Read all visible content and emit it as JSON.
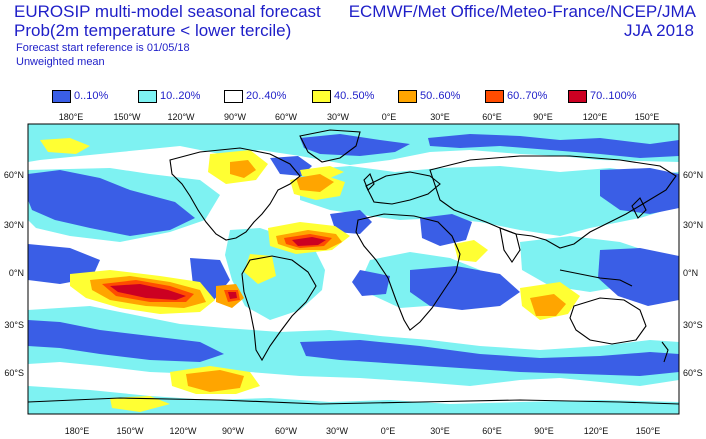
{
  "header": {
    "title_left": "EUROSIP multi-model seasonal forecast",
    "subtitle_left": "Prob(2m temperature < lower tercile)",
    "start_ref": "Forecast start reference is 01/05/18",
    "weighting": "Unweighted mean",
    "title_right": "ECMWF/Met Office/Meteo-France/NCEP/JMA",
    "season": "JJA 2018"
  },
  "legend": [
    {
      "label": "0..10%",
      "color": "#3a5ee6"
    },
    {
      "label": "10..20%",
      "color": "#7ef2f2"
    },
    {
      "label": "20..40%",
      "color": "#ffffff"
    },
    {
      "label": "40..50%",
      "color": "#ffff33"
    },
    {
      "label": "50..60%",
      "color": "#ffa500"
    },
    {
      "label": "60..70%",
      "color": "#ff4c00"
    },
    {
      "label": "70..100%",
      "color": "#cc0022"
    }
  ],
  "map": {
    "lon_labels": [
      "180°E",
      "150°W",
      "120°W",
      "90°W",
      "60°W",
      "30°W",
      "0°E",
      "30°E",
      "60°E",
      "90°E",
      "120°E",
      "150°E"
    ],
    "lat_labels": [
      "60°N",
      "30°N",
      "0°N",
      "30°S",
      "60°S"
    ]
  }
}
